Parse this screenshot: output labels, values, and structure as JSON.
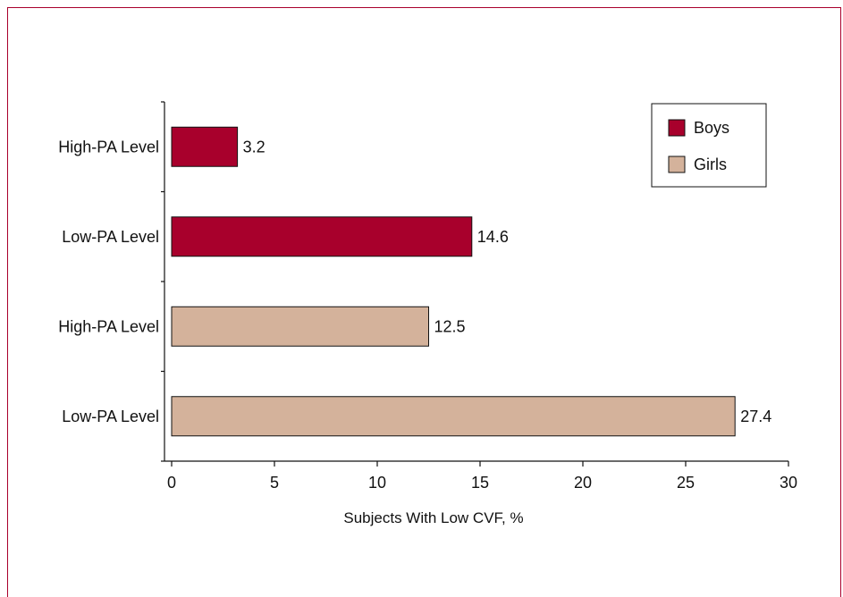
{
  "chart_data": {
    "type": "bar",
    "orientation": "horizontal",
    "categories": [
      "High-PA Level",
      "Low-PA Level",
      "High-PA Level",
      "Low-PA Level"
    ],
    "values": [
      3.2,
      14.6,
      12.5,
      27.4
    ],
    "value_labels": [
      "3.2",
      "14.6",
      "12.5",
      "27.4"
    ],
    "groups": [
      "Boys",
      "Boys",
      "Girls",
      "Girls"
    ],
    "series": [
      {
        "name": "Boys",
        "color": "#a8002c"
      },
      {
        "name": "Girls",
        "color": "#d4b29b"
      }
    ],
    "xlabel": "Subjects With Low CVF, %",
    "xlim": [
      0,
      30
    ],
    "xticks": [
      0,
      5,
      10,
      15,
      20,
      25,
      30
    ],
    "xtick_labels": [
      "0",
      "5",
      "10",
      "15",
      "20",
      "25",
      "30"
    ],
    "legend_position": "top-right",
    "grid": false
  }
}
